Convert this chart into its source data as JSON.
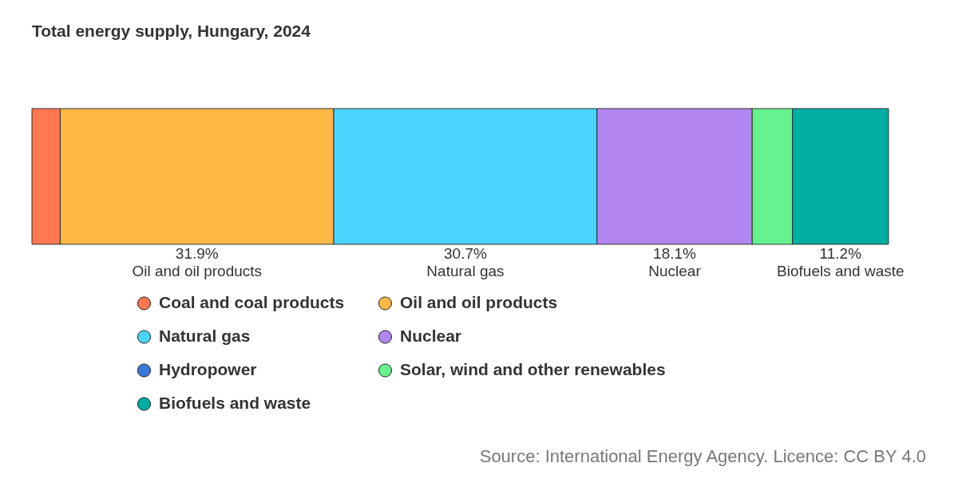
{
  "chart_data": {
    "type": "bar",
    "orientation": "horizontal",
    "stacked": true,
    "title": "Total energy supply, Hungary, 2024",
    "categories": [
      null
    ],
    "grid": false,
    "legend": "bottom",
    "series": [
      {
        "name": "Coal and coal products",
        "color": "#fe7851",
        "values": [
          3.3
        ],
        "value_labels": [
          null
        ]
      },
      {
        "name": "Oil and oil products",
        "color": "#fdb845",
        "values": [
          31.9
        ],
        "value_labels": [
          "31.9%"
        ]
      },
      {
        "name": "Natural gas",
        "color": "#4ad4fe",
        "values": [
          30.7
        ],
        "value_labels": [
          "30.7%"
        ]
      },
      {
        "name": "Nuclear",
        "color": "#b186ee",
        "values": [
          18.1
        ],
        "value_labels": [
          "18.1%"
        ]
      },
      {
        "name": "Hydropower",
        "color": "#3b7bd5",
        "values": [
          null
        ],
        "value_labels": [
          null
        ]
      },
      {
        "name": "Solar, wind and other renewables",
        "color": "#67f290",
        "values": [
          4.7
        ],
        "value_labels": [
          null
        ]
      },
      {
        "name": "Biofuels and waste",
        "color": "#00ada1",
        "values": [
          11.2
        ],
        "value_labels": [
          "11.2%"
        ]
      }
    ],
    "annotations": [
      "Source: International Energy Agency. Licence: CC BY 4.0"
    ]
  }
}
